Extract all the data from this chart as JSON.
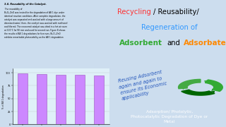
{
  "left_panel": {
    "bg_color": "#dff0f8",
    "border_color": "#55aadd",
    "bar_values": [
      99,
      97,
      96,
      96,
      95
    ],
    "bar_color": "#cc88ff",
    "bar_edge_color": "#9955bb",
    "ylabel": "% of AB 1 degradation",
    "floor_color": "#d4b870",
    "text_body": "3.4. Reusability of the Catalyst. The reusability of\nBi₂O₃-ZnO was tested for the degradation of AB 1 dye under\nidentical reaction conditions. After complete degradation, the\ncatalyst was separated and washed with a large amount of\ndeionised water; then, the catalyst was washed with methanol\nand filtered. The recovered catalyst was dried in a hot air oven\nat 100 °C for 90 min and used for second run. Figure 8 shows\nthe results of AB 1 degradations for five runs. Bi₂O₃-ZnO\nexhibits remarkable photostability as the AB 1 degradation"
  },
  "right_top": {
    "bg_color": "#ffffff",
    "border_color": "#888888",
    "recycling_color": "#ff3333",
    "reusability_color": "#000000",
    "regeneration_color": "#3399ff",
    "adsorbent_color": "#33aa33",
    "and_color": "#000000",
    "adsorbate_color": "#ff8800"
  },
  "right_mid": {
    "bg_color": "#ffffff",
    "text": "Reusing Adsorbent\nagain and again to\nensure its Economic\napplicability",
    "text_color": "#2255bb"
  },
  "right_bot": {
    "bg_color": "#111111",
    "text": "Adsorption/ Photolytic,\nPhotocatalytic Degradation of Dye or\nMetal",
    "text_color": "#ffffff"
  },
  "tick_labels": [
    "1$^{st}$ Run",
    "2$^{nd}$ Run",
    "3$^{rd}$ Run",
    "4$^{th}$ Run",
    "5$^{th}$ Run"
  ]
}
